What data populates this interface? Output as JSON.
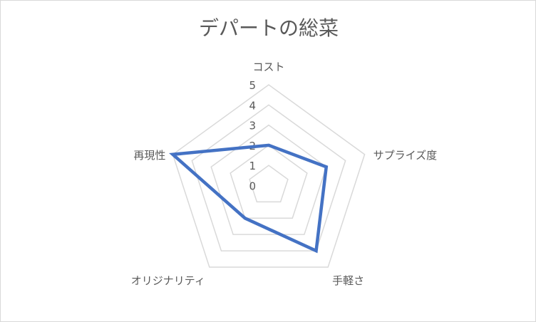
{
  "chart_data": {
    "type": "radar",
    "title": "デパートの総菜",
    "categories": [
      "コスト",
      "サプライズ度",
      "手軽さ",
      "オリジナリティ",
      "再現性"
    ],
    "series": [
      {
        "values": [
          2,
          3,
          4,
          2,
          5
        ],
        "color": "#4472c4"
      }
    ],
    "rlim": [
      0,
      5
    ],
    "ticks": [
      "0",
      "1",
      "2",
      "3",
      "4",
      "5"
    ],
    "grid": true,
    "grid_color": "#d9d9d9",
    "legend": "none"
  }
}
